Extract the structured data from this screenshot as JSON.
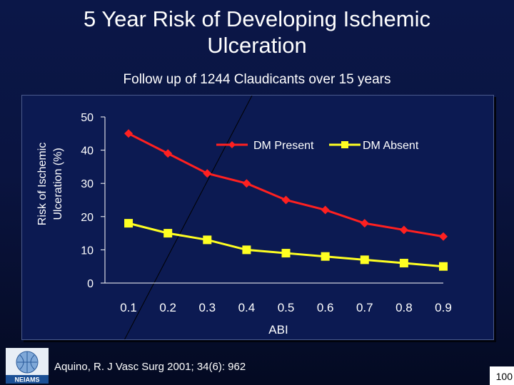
{
  "slide": {
    "title_line1": "5 Year Risk of Developing Ischemic",
    "title_line2": "Ulceration",
    "subtitle": "Follow up of 1244 Claudicants over 15 years",
    "citation": "Aquino, R.  J Vasc Surg 2001; 34(6): 962",
    "page_number": "100",
    "logo_text": "NEIAMS"
  },
  "colors": {
    "dm_present": "#ff2020",
    "dm_absent": "#ffff22",
    "axis": "#ffffff",
    "background": "#0a1440"
  },
  "chart_data": {
    "type": "line",
    "title": "",
    "xlabel": "ABI",
    "ylabel": "Risk of Ischemic Ulceration (%)",
    "ylabel_lines": [
      "Risk of Ischemic",
      "Ulceration (%)"
    ],
    "categories": [
      "0.1",
      "0.2",
      "0.3",
      "0.4",
      "0.5",
      "0.6",
      "0.7",
      "0.8",
      "0.9"
    ],
    "ylim": [
      0,
      50
    ],
    "yticks": [
      0,
      10,
      20,
      30,
      40,
      50
    ],
    "grid": false,
    "legend_position": "top-right",
    "series": [
      {
        "name": "DM Present",
        "marker": "diamond",
        "values": [
          45,
          39,
          33,
          30,
          25,
          22,
          18,
          16,
          14
        ]
      },
      {
        "name": "DM Absent",
        "marker": "square",
        "values": [
          18,
          15,
          13,
          10,
          9,
          8,
          7,
          6,
          5
        ]
      }
    ]
  }
}
